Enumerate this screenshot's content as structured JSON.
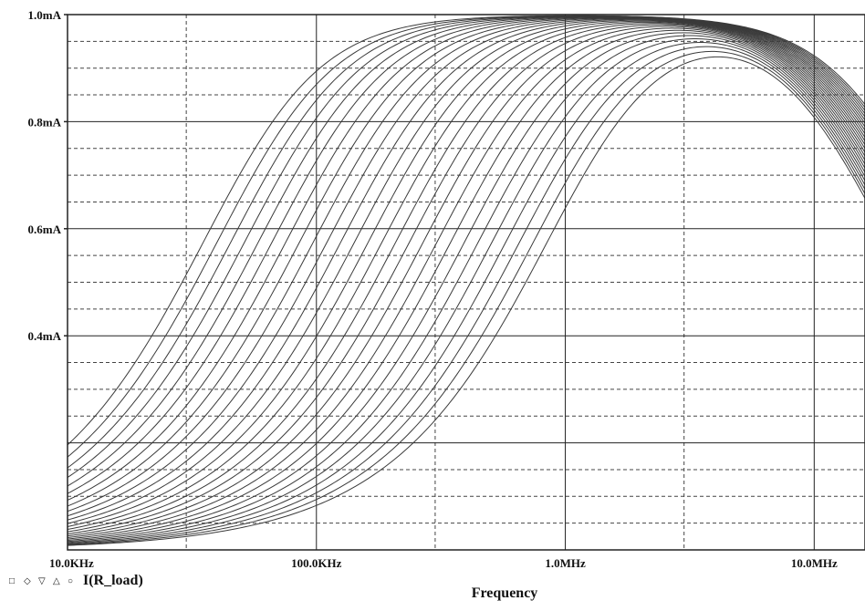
{
  "chart_data": {
    "type": "line",
    "xlabel": "Frequency",
    "ylabel": "",
    "x_scale": "log",
    "xlim": [
      "10.0KHz",
      "16.0MHz"
    ],
    "xlim_hz": [
      10000,
      16000000
    ],
    "ylim": [
      0,
      1.0
    ],
    "y_unit": "mA",
    "x_ticks": [
      {
        "label": "10.0KHz",
        "value": 10000
      },
      {
        "label": "100.0KHz",
        "value": 100000
      },
      {
        "label": "1.0MHz",
        "value": 1000000
      },
      {
        "label": "10.0MHz",
        "value": 10000000
      }
    ],
    "y_ticks": [
      {
        "label": "1.0mA",
        "value": 1.0
      },
      {
        "label": "0.8mA",
        "value": 0.8
      },
      {
        "label": "0.6mA",
        "value": 0.6
      },
      {
        "label": "0.4mA",
        "value": 0.4
      }
    ],
    "grid": true,
    "legend": {
      "placement": "bottom-left",
      "markers": [
        "□",
        "◇",
        "▽",
        "△",
        "○"
      ],
      "label": "I(R_load)"
    },
    "series_count": 26,
    "series_model": "bandpass",
    "highpass_corner_hz_range": [
      50000,
      1200000
    ],
    "lowpass_corner_hz_range": [
      14000000,
      24000000
    ],
    "peak_ma": 1.0,
    "series_sample": [
      {
        "x_hz": [
          10000,
          100000,
          1000000,
          3000000,
          10000000,
          16000000
        ],
        "y_ma": [
          0.2,
          0.89,
          1.0,
          1.0,
          0.89,
          0.74
        ]
      },
      {
        "x_hz": [
          10000,
          100000,
          1000000,
          3000000,
          10000000,
          16000000
        ],
        "y_ma": [
          0.01,
          0.08,
          0.64,
          0.93,
          0.82,
          0.59
        ]
      }
    ]
  },
  "colors": {
    "background": "#ffffff",
    "curve": "#3a3a3a",
    "grid_solid": "#222222",
    "grid_dashed": "#444444",
    "text": "#111111"
  }
}
